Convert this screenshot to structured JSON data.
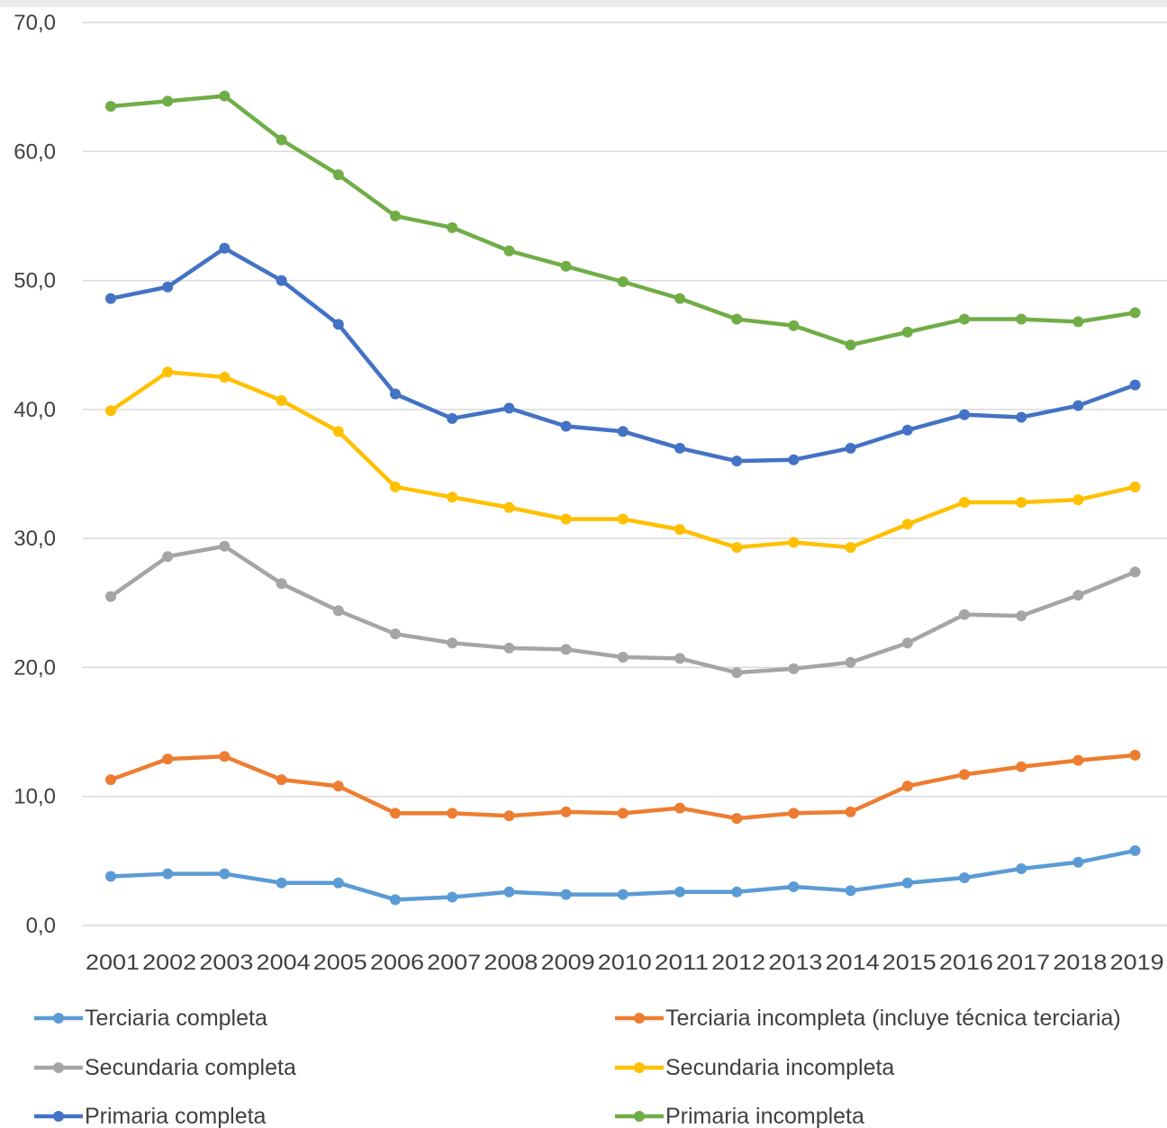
{
  "chart_data": {
    "type": "line",
    "title": "",
    "xlabel": "",
    "ylabel": "",
    "ylim": [
      0,
      70
    ],
    "y_ticks": [
      "0,0",
      "10,0",
      "20,0",
      "30,0",
      "40,0",
      "50,0",
      "60,0",
      "70,0"
    ],
    "y_tick_values": [
      0,
      10,
      20,
      30,
      40,
      50,
      60,
      70
    ],
    "categories": [
      "2001",
      "2002",
      "2003",
      "2004",
      "2005",
      "2006",
      "2007",
      "2008",
      "2009",
      "2010",
      "2011",
      "2012",
      "2013",
      "2014",
      "2015",
      "2016",
      "2017",
      "2018",
      "2019"
    ],
    "grid": "horizontal",
    "legend_position": "bottom",
    "series": [
      {
        "name": "Terciaria completa",
        "color": "#5b9bd5",
        "values": [
          3.8,
          4.0,
          4.0,
          3.3,
          3.3,
          2.0,
          2.2,
          2.6,
          2.4,
          2.4,
          2.6,
          2.6,
          3.0,
          2.7,
          3.3,
          3.7,
          4.4,
          4.9,
          5.8
        ]
      },
      {
        "name": "Terciaria incompleta (incluye técnica terciaria)",
        "color": "#ed7d31",
        "values": [
          11.3,
          12.9,
          13.1,
          11.3,
          10.8,
          8.7,
          8.7,
          8.5,
          8.8,
          8.7,
          9.1,
          8.3,
          8.7,
          8.8,
          10.8,
          11.7,
          12.3,
          12.8,
          13.2
        ]
      },
      {
        "name": "Secundaria completa",
        "color": "#a5a5a5",
        "values": [
          25.5,
          28.6,
          29.4,
          26.5,
          24.4,
          22.6,
          21.9,
          21.5,
          21.4,
          20.8,
          20.7,
          19.6,
          19.9,
          20.4,
          21.9,
          24.1,
          24.0,
          25.6,
          27.4
        ]
      },
      {
        "name": "Secundaria incompleta",
        "color": "#ffc000",
        "values": [
          39.9,
          42.9,
          42.5,
          40.7,
          38.3,
          34.0,
          33.2,
          32.4,
          31.5,
          31.5,
          30.7,
          29.3,
          29.7,
          29.3,
          31.1,
          32.8,
          32.8,
          33.0,
          34.0
        ]
      },
      {
        "name": "Primaria completa",
        "color": "#4472c4",
        "values": [
          48.6,
          49.5,
          52.5,
          50.0,
          46.6,
          41.2,
          39.3,
          40.1,
          38.7,
          38.3,
          37.0,
          36.0,
          36.1,
          37.0,
          38.4,
          39.6,
          39.4,
          40.3,
          41.9
        ]
      },
      {
        "name": "Primaria incompleta",
        "color": "#70ad47",
        "values": [
          63.5,
          63.9,
          64.3,
          60.9,
          58.2,
          55.0,
          54.1,
          52.3,
          51.1,
          49.9,
          48.6,
          47.0,
          46.5,
          45.0,
          46.0,
          47.0,
          47.0,
          46.8,
          47.5
        ]
      }
    ]
  }
}
